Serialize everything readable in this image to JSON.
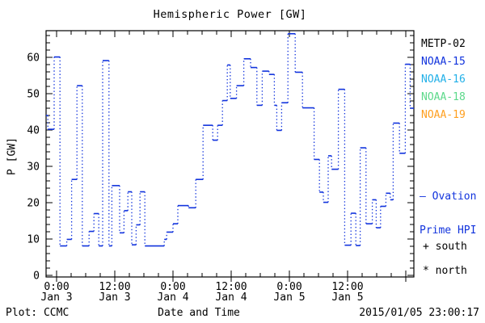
{
  "title": "Hemispheric Power [GW]",
  "y_axis": {
    "label": "P [GW]",
    "tick_values": [
      0,
      10,
      20,
      30,
      40,
      50,
      60
    ],
    "minor_step": 2,
    "range": [
      0,
      67.3
    ]
  },
  "x_axis": {
    "label": "Date and Time",
    "unit": "hours since 2015-01-03 00:00",
    "range_hours": [
      -2.17,
      73.67
    ],
    "major_tick_hours": [
      0,
      12,
      24,
      36,
      48,
      60,
      72
    ],
    "minor_step_hours": 3,
    "tick_labels": [
      {
        "hour": 0,
        "time": "0:00",
        "date": "Jan 3"
      },
      {
        "hour": 12,
        "time": "12:00",
        "date": "Jan 3"
      },
      {
        "hour": 24,
        "time": "0:00",
        "date": "Jan 4"
      },
      {
        "hour": 36,
        "time": "12:00",
        "date": "Jan 4"
      },
      {
        "hour": 48,
        "time": "0:00",
        "date": "Jan 5"
      },
      {
        "hour": 60,
        "time": "12:00",
        "date": "Jan 5"
      }
    ]
  },
  "legend": {
    "satellites": [
      {
        "id": "metp-02",
        "label": "METP-02",
        "color": "#000000"
      },
      {
        "id": "noaa-15",
        "label": "NOAA-15",
        "color": "#1133dd"
      },
      {
        "id": "noaa-16",
        "label": "NOAA-16",
        "color": "#22b0e8"
      },
      {
        "id": "noaa-18",
        "label": "NOAA-18",
        "color": "#5cd98a"
      },
      {
        "id": "noaa-19",
        "label": "NOAA-19",
        "color": "#ff9f1f"
      }
    ],
    "line_note_line1": "— Ovation",
    "line_note_line2": "Prime HPI",
    "line_note_color": "#1133dd",
    "marker_south_symbol": "+",
    "marker_south_label": "south",
    "marker_north_symbol": "*",
    "marker_north_label": "north"
  },
  "footer": {
    "left": "Plot: CCMC",
    "right": "2015/01/05 23:00:17"
  },
  "chart_data": {
    "type": "line",
    "style": "step-histogram",
    "series_name": "Ovation Prime HPI",
    "color": "#1133dd",
    "title": "Hemispheric Power [GW]",
    "xlabel": "Date and Time",
    "ylabel": "P [GW]",
    "ylim": [
      0,
      67.3
    ],
    "xlim_hours": [
      -2.17,
      73.67
    ],
    "grid": false,
    "legend_position": "right-outside",
    "steps_hour_start_end_gw": [
      [
        -2.2,
        -1.8,
        44.0
      ],
      [
        -1.8,
        -0.5,
        40.2
      ],
      [
        -0.5,
        0.7,
        60.1
      ],
      [
        0.7,
        2.1,
        8.1
      ],
      [
        2.1,
        3.1,
        9.9
      ],
      [
        3.1,
        4.2,
        26.4
      ],
      [
        4.2,
        5.3,
        52.2
      ],
      [
        5.3,
        6.7,
        8.1
      ],
      [
        6.7,
        7.7,
        12.1
      ],
      [
        7.7,
        8.7,
        17.0
      ],
      [
        8.7,
        9.5,
        8.1
      ],
      [
        9.5,
        10.8,
        59.1
      ],
      [
        10.8,
        11.4,
        8.1
      ],
      [
        11.4,
        13.0,
        24.7
      ],
      [
        13.0,
        13.9,
        11.7
      ],
      [
        13.9,
        14.7,
        17.8
      ],
      [
        14.7,
        15.5,
        23.0
      ],
      [
        15.5,
        16.4,
        8.4
      ],
      [
        16.4,
        17.2,
        13.9
      ],
      [
        17.2,
        18.2,
        23.0
      ],
      [
        18.2,
        22.2,
        8.1
      ],
      [
        22.2,
        22.7,
        9.9
      ],
      [
        22.7,
        24.0,
        11.9
      ],
      [
        24.0,
        25.0,
        14.2
      ],
      [
        25.0,
        27.2,
        19.2
      ],
      [
        27.2,
        28.7,
        18.6
      ],
      [
        28.7,
        30.2,
        26.4
      ],
      [
        30.2,
        32.2,
        41.3
      ],
      [
        32.2,
        33.2,
        37.2
      ],
      [
        33.2,
        34.2,
        41.3
      ],
      [
        34.2,
        35.2,
        48.1
      ],
      [
        35.2,
        35.8,
        57.9
      ],
      [
        35.8,
        37.1,
        48.7
      ],
      [
        37.1,
        38.6,
        52.2
      ],
      [
        38.6,
        40.0,
        59.6
      ],
      [
        40.0,
        41.3,
        57.2
      ],
      [
        41.3,
        42.4,
        46.8
      ],
      [
        42.4,
        43.8,
        56.2
      ],
      [
        43.8,
        44.9,
        55.3
      ],
      [
        44.9,
        45.4,
        46.8
      ],
      [
        45.4,
        46.4,
        39.9
      ],
      [
        46.4,
        47.7,
        47.5
      ],
      [
        47.7,
        49.2,
        66.5
      ],
      [
        49.2,
        50.7,
        55.9
      ],
      [
        50.7,
        53.1,
        46.1
      ],
      [
        53.1,
        54.2,
        31.9
      ],
      [
        54.2,
        55.0,
        22.9
      ],
      [
        55.0,
        56.0,
        20.1
      ],
      [
        56.0,
        56.7,
        32.9
      ],
      [
        56.7,
        58.1,
        29.2
      ],
      [
        58.1,
        59.4,
        51.2
      ],
      [
        59.4,
        60.7,
        8.3
      ],
      [
        60.7,
        61.7,
        17.1
      ],
      [
        61.7,
        62.6,
        8.2
      ],
      [
        62.6,
        63.8,
        35.1
      ],
      [
        63.8,
        65.1,
        14.2
      ],
      [
        65.1,
        65.9,
        20.8
      ],
      [
        65.9,
        66.8,
        13.1
      ],
      [
        66.8,
        67.9,
        19.0
      ],
      [
        67.9,
        68.8,
        22.6
      ],
      [
        68.8,
        69.4,
        20.8
      ],
      [
        69.4,
        70.7,
        41.9
      ],
      [
        70.7,
        71.9,
        33.6
      ],
      [
        71.9,
        72.9,
        58.1
      ],
      [
        72.9,
        73.7,
        46.0
      ]
    ]
  }
}
